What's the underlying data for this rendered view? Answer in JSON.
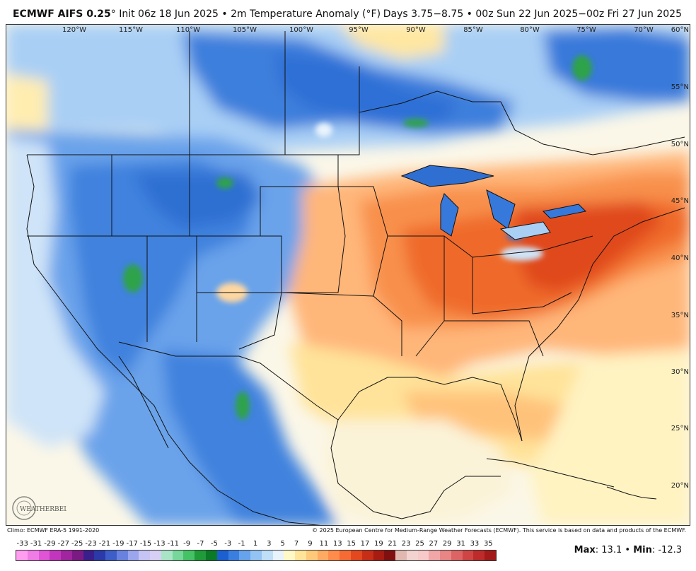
{
  "header": {
    "model": "ECMWF AIFS 0.25",
    "degree": "°",
    "init": "Init 06z 18 Jun 2025",
    "bullet": "•",
    "field": "2m Temperature Anomaly (°F)",
    "valid": "Days 3.75−8.75 • 00z Sun 22 Jun 2025−00z Fri 27 Jun 2025"
  },
  "map": {
    "longitudes": [
      "120°W",
      "115°W",
      "110°W",
      "105°W",
      "100°W",
      "95°W",
      "90°W",
      "85°W",
      "80°W",
      "75°W",
      "70°W"
    ],
    "latitudes": [
      "60°N",
      "55°N",
      "50°N",
      "45°N",
      "40°N",
      "35°N",
      "30°N",
      "25°N",
      "20°N"
    ],
    "logo_text": "WEATHERBELL"
  },
  "footer": {
    "climo": "Climo: ECMWF ERA-5 1991-2020",
    "copyright": "© 2025 European Centre for Medium-Range Weather Forecasts (ECMWF). This service is based on data and products of the ECMWF."
  },
  "colorbar": {
    "labels": [
      "-33",
      "-31",
      "-29",
      "-27",
      "-25",
      "-23",
      "-21",
      "-19",
      "-17",
      "-15",
      "-13",
      "-11",
      "-9",
      "-7",
      "-5",
      "-3",
      "-1",
      "1",
      "3",
      "5",
      "7",
      "9",
      "11",
      "13",
      "15",
      "17",
      "19",
      "21",
      "23",
      "25",
      "27",
      "29",
      "31",
      "33",
      "35"
    ],
    "colors": [
      "#ff9ef0",
      "#f07ce6",
      "#df55d6",
      "#c236bd",
      "#a0259f",
      "#7c1a84",
      "#3a1f8c",
      "#2b3aa8",
      "#3d5ec9",
      "#6a82df",
      "#9aa6ee",
      "#c5c4f4",
      "#d7d0f4",
      "#a9e4c7",
      "#77d69a",
      "#45c266",
      "#1f9b3a",
      "#0a7a27",
      "#1b5fd0",
      "#3a7fe0",
      "#67a2ec",
      "#93c3f3",
      "#bfdef8",
      "#e8f3fb",
      "#fff9c7",
      "#ffe499",
      "#ffc97a",
      "#ffaa63",
      "#ff8c4a",
      "#f66b34",
      "#e3481f",
      "#c72e17",
      "#a61b12",
      "#801010",
      "#e0b8b0",
      "#f2d3d0",
      "#f7c9c9",
      "#f1a7a7",
      "#e88585",
      "#dd6464",
      "#cf4545",
      "#be2b2b",
      "#a31a1a"
    ]
  },
  "stats": {
    "max_label": "Max",
    "max_value": "13.1",
    "separator": "•",
    "min_label": "Min",
    "min_value": "-12.3"
  }
}
